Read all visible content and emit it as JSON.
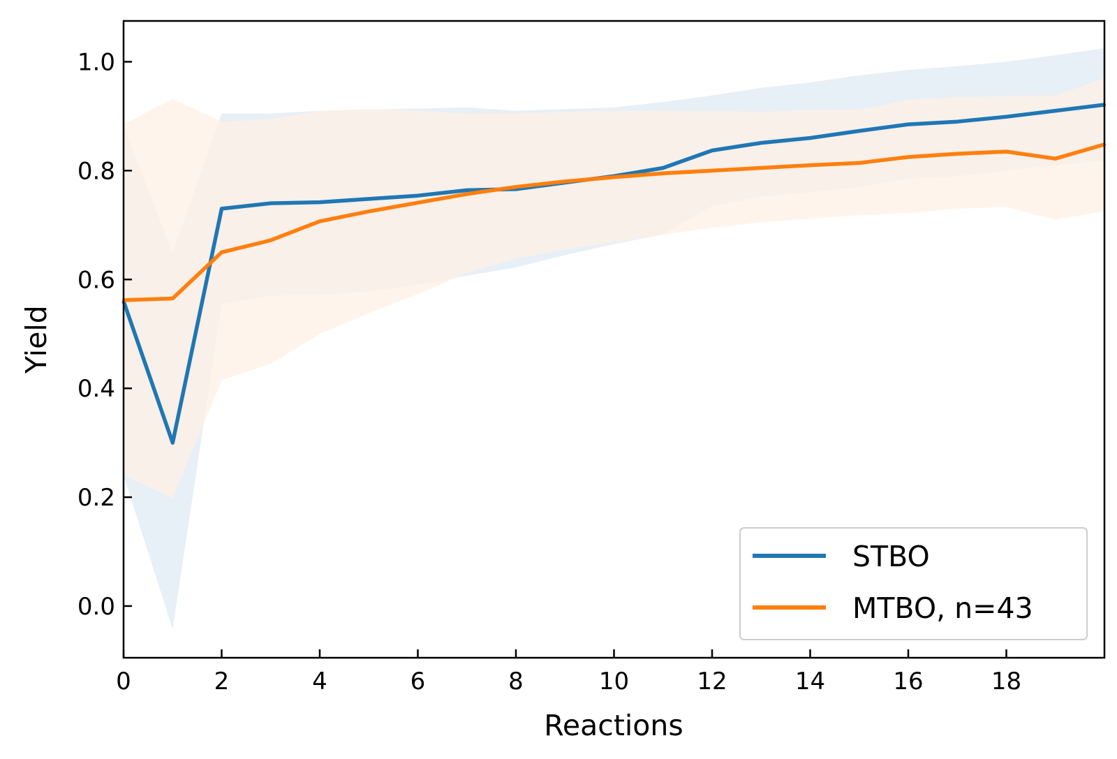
{
  "chart_data": {
    "type": "line",
    "xlabel": "Reactions",
    "ylabel": "Yield",
    "xlim": [
      0,
      20
    ],
    "ylim": [
      -0.095,
      1.075
    ],
    "xticks": [
      0,
      2,
      4,
      6,
      8,
      10,
      12,
      14,
      16,
      18
    ],
    "xtick_labels": [
      "0",
      "2",
      "4",
      "6",
      "8",
      "10",
      "12",
      "14",
      "16",
      "18"
    ],
    "yticks": [
      0.0,
      0.2,
      0.4,
      0.6,
      0.8,
      1.0
    ],
    "ytick_labels": [
      "0.0",
      "0.2",
      "0.4",
      "0.6",
      "0.8",
      "1.0"
    ],
    "grid": false,
    "legend_position": "lower-right",
    "x": [
      0,
      1,
      2,
      3,
      4,
      5,
      6,
      7,
      8,
      9,
      10,
      11,
      12,
      13,
      14,
      15,
      16,
      17,
      18,
      19,
      20
    ],
    "series": [
      {
        "name": "STBO",
        "color": "#1f77b4",
        "band_color": "#e7eff7",
        "values": [
          0.56,
          0.3,
          0.73,
          0.74,
          0.742,
          0.748,
          0.754,
          0.764,
          0.766,
          0.778,
          0.79,
          0.805,
          0.837,
          0.851,
          0.86,
          0.873,
          0.885,
          0.89,
          0.899,
          0.91,
          0.921
        ],
        "upper": [
          0.88,
          0.65,
          0.905,
          0.905,
          0.91,
          0.912,
          0.914,
          0.916,
          0.91,
          0.913,
          0.916,
          0.926,
          0.938,
          0.952,
          0.962,
          0.975,
          0.985,
          0.992,
          1.0,
          1.012,
          1.025
        ],
        "lower": [
          0.24,
          -0.042,
          0.555,
          0.57,
          0.572,
          0.578,
          0.59,
          0.607,
          0.622,
          0.645,
          0.665,
          0.683,
          0.735,
          0.752,
          0.76,
          0.77,
          0.785,
          0.79,
          0.8,
          0.81,
          0.818
        ]
      },
      {
        "name": "MTBO, n=43",
        "color": "#ff7f0e",
        "band_color": "#fff0e4",
        "values": [
          0.562,
          0.565,
          0.65,
          0.672,
          0.707,
          0.725,
          0.741,
          0.757,
          0.77,
          0.78,
          0.788,
          0.795,
          0.8,
          0.805,
          0.81,
          0.814,
          0.825,
          0.831,
          0.835,
          0.822,
          0.848
        ],
        "upper": [
          0.885,
          0.932,
          0.89,
          0.895,
          0.91,
          0.913,
          0.91,
          0.905,
          0.905,
          0.908,
          0.91,
          0.91,
          0.91,
          0.908,
          0.912,
          0.912,
          0.93,
          0.935,
          0.937,
          0.938,
          0.97
        ],
        "lower": [
          0.24,
          0.198,
          0.415,
          0.445,
          0.5,
          0.538,
          0.573,
          0.612,
          0.638,
          0.655,
          0.668,
          0.682,
          0.695,
          0.705,
          0.712,
          0.718,
          0.722,
          0.73,
          0.733,
          0.71,
          0.725
        ]
      }
    ]
  }
}
